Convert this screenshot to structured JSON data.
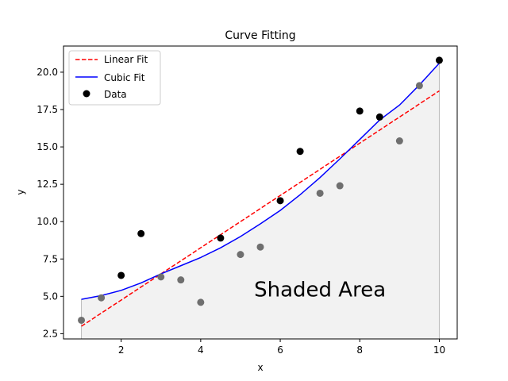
{
  "chart_data": {
    "type": "scatter",
    "title": "Curve Fitting",
    "xlabel": "x",
    "ylabel": "y",
    "xlim": [
      0.55,
      10.45
    ],
    "ylim": [
      2.15,
      21.75
    ],
    "xticks": [
      2,
      4,
      6,
      8,
      10
    ],
    "xtick_labels": [
      "2",
      "4",
      "6",
      "8",
      "10"
    ],
    "yticks": [
      2.5,
      5.0,
      7.5,
      10.0,
      12.5,
      15.0,
      17.5,
      20.0
    ],
    "ytick_labels": [
      "2.5",
      "5.0",
      "7.5",
      "10.0",
      "12.5",
      "15.0",
      "17.5",
      "20.0"
    ],
    "grid": false,
    "legend_position": "top-left",
    "legend": [
      {
        "label": "Linear Fit",
        "style": "dashed-line",
        "color": "#ff0000"
      },
      {
        "label": "Cubic Fit",
        "style": "solid-line",
        "color": "#0000ff"
      },
      {
        "label": "Data",
        "style": "marker",
        "color": "#000000"
      }
    ],
    "series": [
      {
        "name": "Data",
        "kind": "scatter",
        "color": "#000000",
        "x": [
          1.0,
          1.5,
          2.0,
          2.5,
          3.0,
          3.5,
          4.0,
          4.5,
          5.0,
          5.5,
          6.0,
          6.5,
          7.0,
          7.5,
          8.0,
          8.5,
          9.0,
          9.5,
          10.0
        ],
        "y": [
          3.4,
          4.9,
          6.4,
          9.2,
          6.3,
          6.1,
          4.6,
          8.9,
          7.8,
          8.3,
          11.4,
          14.7,
          11.9,
          12.4,
          17.4,
          17.0,
          15.4,
          19.1,
          20.8
        ]
      },
      {
        "name": "Linear Fit",
        "kind": "line",
        "color": "#ff0000",
        "dash": true,
        "x": [
          1.0,
          10.0
        ],
        "y": [
          3.0,
          18.75
        ]
      },
      {
        "name": "Cubic Fit",
        "kind": "line",
        "color": "#0000ff",
        "x": [
          1.0,
          1.5,
          2.0,
          2.5,
          3.0,
          3.5,
          4.0,
          4.5,
          5.0,
          5.5,
          6.0,
          6.5,
          7.0,
          7.5,
          8.0,
          8.5,
          9.0,
          9.5,
          10.0
        ],
        "y": [
          4.8,
          5.05,
          5.4,
          5.9,
          6.5,
          7.05,
          7.6,
          8.25,
          9.0,
          9.85,
          10.75,
          11.8,
          12.95,
          14.2,
          15.5,
          16.8,
          17.8,
          19.15,
          20.6
        ]
      }
    ],
    "shaded_region": {
      "label": "Shaded Area",
      "color": "#f2f2f2",
      "edge_color": "#bbbbbb",
      "follows": "Cubic Fit"
    },
    "annotations": [
      {
        "text": "Shaded Area",
        "x": 7.0,
        "y": 5.0
      }
    ]
  }
}
